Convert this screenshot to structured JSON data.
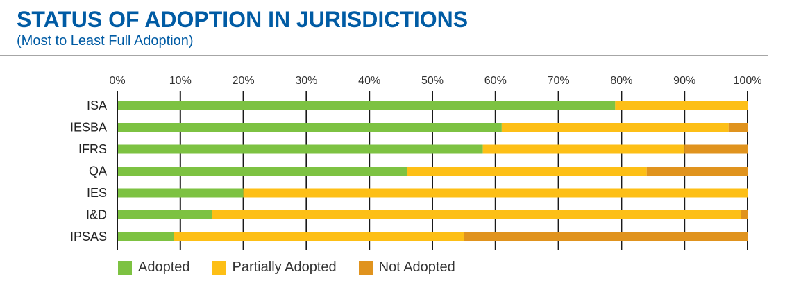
{
  "header": {
    "title": "STATUS OF ADOPTION IN JURISDICTIONS",
    "subtitle": "(Most to Least Full Adoption)"
  },
  "chart_data": {
    "type": "bar",
    "orientation": "horizontal",
    "stacked": true,
    "title": "STATUS OF ADOPTION IN JURISDICTIONS",
    "subtitle": "(Most to Least Full Adoption)",
    "categories": [
      "ISA",
      "IESBA",
      "IFRS",
      "QA",
      "IES",
      "I&D",
      "IPSAS"
    ],
    "series": [
      {
        "name": "Adopted",
        "color": "#7dc242",
        "values": [
          79,
          61,
          58,
          46,
          20,
          15,
          9
        ]
      },
      {
        "name": "Partially Adopted",
        "color": "#fdbf16",
        "values": [
          21,
          36,
          32,
          38,
          80,
          84,
          46
        ]
      },
      {
        "name": "Not Adopted",
        "color": "#e0931e",
        "values": [
          0,
          3,
          10,
          16,
          0,
          1,
          45
        ]
      }
    ],
    "x_ticks": [
      "0%",
      "10%",
      "20%",
      "30%",
      "40%",
      "50%",
      "60%",
      "70%",
      "80%",
      "90%",
      "100%"
    ],
    "xlim": [
      0,
      100
    ],
    "axis_position": "top",
    "grid": true,
    "legend_position": "bottom-left"
  }
}
